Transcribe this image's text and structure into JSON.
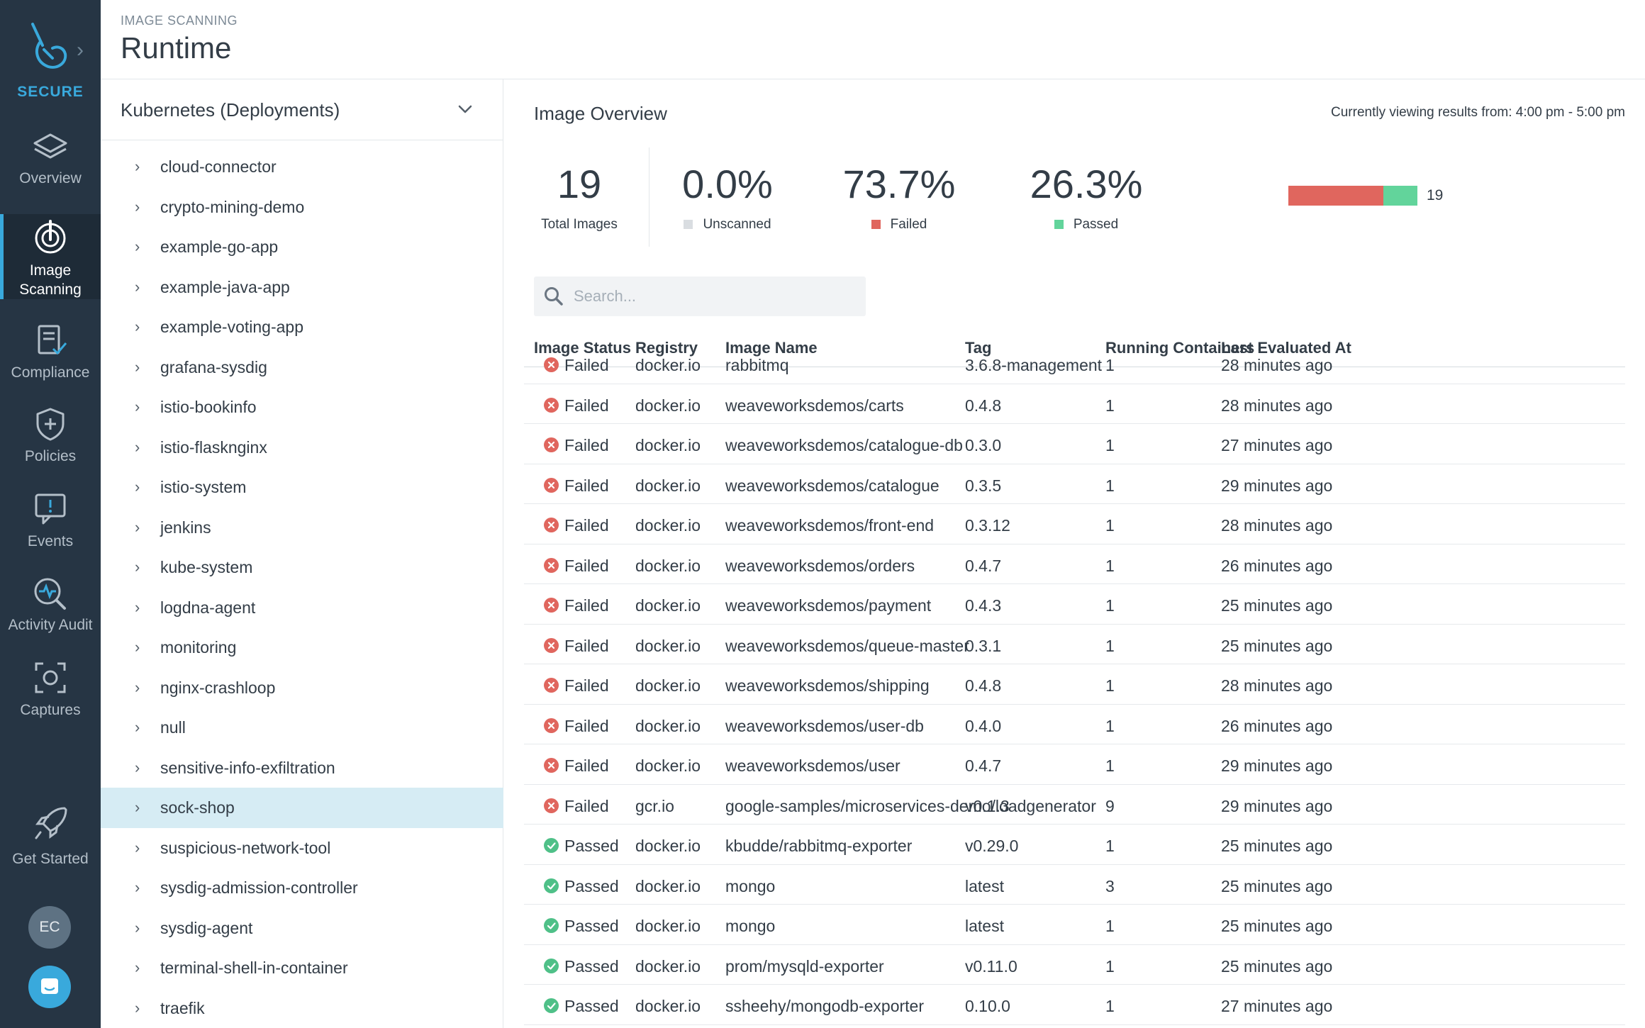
{
  "nav": {
    "brand": "SECURE",
    "items": [
      {
        "id": "overview",
        "label": "Overview",
        "icon": "layers-icon"
      },
      {
        "id": "image-scanning",
        "label_line1": "Image",
        "label_line2": "Scanning",
        "icon": "scan-icon",
        "active": true
      },
      {
        "id": "compliance",
        "label": "Compliance",
        "icon": "clipboard-icon"
      },
      {
        "id": "policies",
        "label": "Policies",
        "icon": "shield-icon"
      },
      {
        "id": "events",
        "label": "Events",
        "icon": "alert-chat-icon"
      },
      {
        "id": "activity-audit",
        "label": "Activity Audit",
        "icon": "audit-search-icon"
      },
      {
        "id": "captures",
        "label": "Captures",
        "icon": "capture-icon"
      }
    ],
    "get_started": "Get Started",
    "avatar_initials": "EC"
  },
  "header": {
    "eyebrow": "IMAGE SCANNING",
    "title": "Runtime"
  },
  "tree": {
    "dropdown_label": "Kubernetes (Deployments)",
    "items": [
      "cloud-connector",
      "crypto-mining-demo",
      "example-go-app",
      "example-java-app",
      "example-voting-app",
      "grafana-sysdig",
      "istio-bookinfo",
      "istio-flasknginx",
      "istio-system",
      "jenkins",
      "kube-system",
      "logdna-agent",
      "monitoring",
      "nginx-crashloop",
      "null",
      "sensitive-info-exfiltration",
      "sock-shop",
      "suspicious-network-tool",
      "sysdig-admission-controller",
      "sysdig-agent",
      "terminal-shell-in-container",
      "traefik"
    ],
    "selected": "sock-shop"
  },
  "overview": {
    "title": "Image Overview",
    "time_window": "Currently viewing results from: 4:00 pm - 5:00 pm",
    "total_images": "19",
    "total_label": "Total Images",
    "unscanned_pct": "0.0%",
    "unscanned_label": "Unscanned",
    "failed_pct": "73.7%",
    "failed_label": "Failed",
    "passed_pct": "26.3%",
    "passed_label": "Passed",
    "bar_count": "19",
    "bar_fractions": {
      "failed": 0.737,
      "passed": 0.263
    },
    "colors": {
      "failed": "#e0665e",
      "passed": "#62d49b",
      "unscanned": "#d9dde1"
    }
  },
  "search": {
    "placeholder": "Search..."
  },
  "table": {
    "columns": [
      "Image Status",
      "Registry",
      "Image Name",
      "Tag",
      "Running Containers",
      "Last Evaluated At"
    ],
    "rows": [
      {
        "status": "Failed",
        "registry": "docker.io",
        "name": "rabbitmq",
        "tag": "3.6.8-management",
        "running": "1",
        "last": "28 minutes ago"
      },
      {
        "status": "Failed",
        "registry": "docker.io",
        "name": "weaveworksdemos/carts",
        "tag": "0.4.8",
        "running": "1",
        "last": "28 minutes ago"
      },
      {
        "status": "Failed",
        "registry": "docker.io",
        "name": "weaveworksdemos/catalogue-db",
        "tag": "0.3.0",
        "running": "1",
        "last": "27 minutes ago"
      },
      {
        "status": "Failed",
        "registry": "docker.io",
        "name": "weaveworksdemos/catalogue",
        "tag": "0.3.5",
        "running": "1",
        "last": "29 minutes ago"
      },
      {
        "status": "Failed",
        "registry": "docker.io",
        "name": "weaveworksdemos/front-end",
        "tag": "0.3.12",
        "running": "1",
        "last": "28 minutes ago"
      },
      {
        "status": "Failed",
        "registry": "docker.io",
        "name": "weaveworksdemos/orders",
        "tag": "0.4.7",
        "running": "1",
        "last": "26 minutes ago"
      },
      {
        "status": "Failed",
        "registry": "docker.io",
        "name": "weaveworksdemos/payment",
        "tag": "0.4.3",
        "running": "1",
        "last": "25 minutes ago"
      },
      {
        "status": "Failed",
        "registry": "docker.io",
        "name": "weaveworksdemos/queue-master",
        "tag": "0.3.1",
        "running": "1",
        "last": "25 minutes ago"
      },
      {
        "status": "Failed",
        "registry": "docker.io",
        "name": "weaveworksdemos/shipping",
        "tag": "0.4.8",
        "running": "1",
        "last": "28 minutes ago"
      },
      {
        "status": "Failed",
        "registry": "docker.io",
        "name": "weaveworksdemos/user-db",
        "tag": "0.4.0",
        "running": "1",
        "last": "26 minutes ago"
      },
      {
        "status": "Failed",
        "registry": "docker.io",
        "name": "weaveworksdemos/user",
        "tag": "0.4.7",
        "running": "1",
        "last": "29 minutes ago"
      },
      {
        "status": "Failed",
        "registry": "gcr.io",
        "name": "google-samples/microservices-demo/loadgenerator",
        "tag": "v0.1.3",
        "running": "9",
        "last": "29 minutes ago"
      },
      {
        "status": "Passed",
        "registry": "docker.io",
        "name": "kbudde/rabbitmq-exporter",
        "tag": "v0.29.0",
        "running": "1",
        "last": "25 minutes ago"
      },
      {
        "status": "Passed",
        "registry": "docker.io",
        "name": "mongo",
        "tag": "latest",
        "running": "3",
        "last": "25 minutes ago"
      },
      {
        "status": "Passed",
        "registry": "docker.io",
        "name": "mongo",
        "tag": "latest",
        "running": "1",
        "last": "25 minutes ago"
      },
      {
        "status": "Passed",
        "registry": "docker.io",
        "name": "prom/mysqld-exporter",
        "tag": "v0.11.0",
        "running": "1",
        "last": "25 minutes ago"
      },
      {
        "status": "Passed",
        "registry": "docker.io",
        "name": "ssheehy/mongodb-exporter",
        "tag": "0.10.0",
        "running": "1",
        "last": "27 minutes ago"
      }
    ]
  }
}
